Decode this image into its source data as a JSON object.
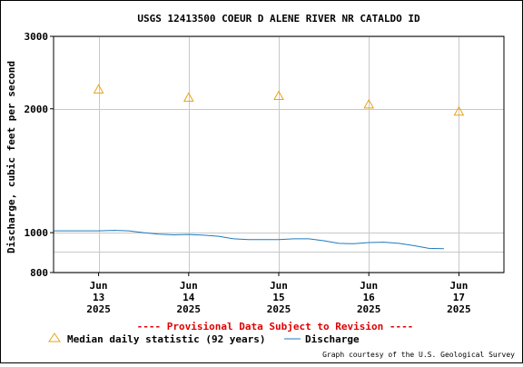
{
  "chart_data": {
    "type": "line",
    "title": "USGS 12413500 COEUR D ALENE RIVER NR CATALDO ID",
    "ylabel": "Discharge, cubic feet per second",
    "xlabel": "",
    "y_scale": "log",
    "ylim": [
      800,
      3000
    ],
    "y_ticks": [
      {
        "value": 800,
        "label": "800"
      },
      {
        "value": 1000,
        "label": "1000"
      },
      {
        "value": 2000,
        "label": "2000"
      },
      {
        "value": 3000,
        "label": "3000"
      }
    ],
    "y_minor_gridlines": [
      900
    ],
    "xlim": [
      "2025-06-12T12:00",
      "2025-06-17T12:00"
    ],
    "x_ticks": [
      {
        "value": "2025-06-13T00:00",
        "line1": "Jun",
        "line2": "13",
        "line3": "2025"
      },
      {
        "value": "2025-06-14T00:00",
        "line1": "Jun",
        "line2": "14",
        "line3": "2025"
      },
      {
        "value": "2025-06-15T00:00",
        "line1": "Jun",
        "line2": "15",
        "line3": "2025"
      },
      {
        "value": "2025-06-16T00:00",
        "line1": "Jun",
        "line2": "16",
        "line3": "2025"
      },
      {
        "value": "2025-06-17T00:00",
        "line1": "Jun",
        "line2": "17",
        "line3": "2025"
      }
    ],
    "grid": true,
    "series": [
      {
        "name": "Median daily statistic (92 years)",
        "marker": "triangle",
        "color": "#e8a317",
        "points": [
          {
            "x": "2025-06-13T00:00",
            "y": 2230
          },
          {
            "x": "2025-06-14T00:00",
            "y": 2130
          },
          {
            "x": "2025-06-15T00:00",
            "y": 2150
          },
          {
            "x": "2025-06-16T00:00",
            "y": 2050
          },
          {
            "x": "2025-06-17T00:00",
            "y": 1970
          }
        ]
      },
      {
        "name": "Discharge",
        "color": "#1f7bbf",
        "points": [
          {
            "x": "2025-06-12T12:00",
            "y": 1010
          },
          {
            "x": "2025-06-12T18:00",
            "y": 1010
          },
          {
            "x": "2025-06-13T00:00",
            "y": 1010
          },
          {
            "x": "2025-06-13T04:00",
            "y": 1013
          },
          {
            "x": "2025-06-13T08:00",
            "y": 1010
          },
          {
            "x": "2025-06-13T12:00",
            "y": 1000
          },
          {
            "x": "2025-06-13T16:00",
            "y": 992
          },
          {
            "x": "2025-06-13T20:00",
            "y": 988
          },
          {
            "x": "2025-06-14T00:00",
            "y": 990
          },
          {
            "x": "2025-06-14T04:00",
            "y": 986
          },
          {
            "x": "2025-06-14T08:00",
            "y": 980
          },
          {
            "x": "2025-06-14T12:00",
            "y": 966
          },
          {
            "x": "2025-06-14T16:00",
            "y": 962
          },
          {
            "x": "2025-06-14T20:00",
            "y": 962
          },
          {
            "x": "2025-06-15T00:00",
            "y": 962
          },
          {
            "x": "2025-06-15T04:00",
            "y": 966
          },
          {
            "x": "2025-06-15T08:00",
            "y": 966
          },
          {
            "x": "2025-06-15T12:00",
            "y": 956
          },
          {
            "x": "2025-06-15T16:00",
            "y": 942
          },
          {
            "x": "2025-06-15T20:00",
            "y": 940
          },
          {
            "x": "2025-06-16T00:00",
            "y": 946
          },
          {
            "x": "2025-06-16T04:00",
            "y": 948
          },
          {
            "x": "2025-06-16T08:00",
            "y": 942
          },
          {
            "x": "2025-06-16T12:00",
            "y": 930
          },
          {
            "x": "2025-06-16T16:00",
            "y": 916
          },
          {
            "x": "2025-06-16T20:00",
            "y": 914
          }
        ]
      }
    ],
    "legend_position": "bottom-left",
    "annotations": [
      "---- Provisional Data Subject to Revision ----"
    ]
  },
  "legend": {
    "median_label": "Median daily statistic (92 years)",
    "discharge_label": "Discharge"
  },
  "provisional_note": "---- Provisional Data Subject to Revision ----",
  "credit": "Graph courtesy of the U.S. Geological Survey",
  "colors": {
    "median": "#e8a317",
    "discharge": "#1f7bbf",
    "provisional": "#e00000",
    "grid": "#c8c8c8"
  }
}
